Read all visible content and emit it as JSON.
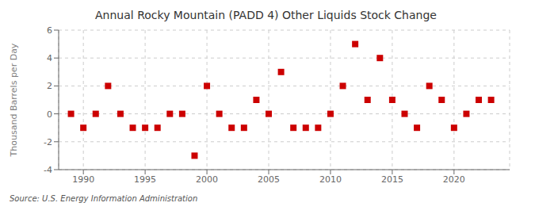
{
  "chart_data": {
    "type": "scatter",
    "title": "Annual Rocky Mountain (PADD 4) Other Liquids Stock Change",
    "ylabel": "Thousand Barrels per Day",
    "source": "Source: U.S. Energy Information Administration",
    "x": [
      1989,
      1990,
      1991,
      1992,
      1993,
      1994,
      1995,
      1996,
      1997,
      1998,
      1999,
      2000,
      2001,
      2002,
      2003,
      2004,
      2005,
      2006,
      2007,
      2008,
      2009,
      2010,
      2011,
      2012,
      2013,
      2014,
      2015,
      2016,
      2017,
      2018,
      2019,
      2020,
      2021,
      2022,
      2023
    ],
    "values": [
      0,
      -1,
      0,
      2,
      0,
      -1,
      -1,
      -1,
      0,
      0,
      -3,
      2,
      0,
      -1,
      -1,
      1,
      0,
      3,
      -1,
      -1,
      -1,
      0,
      2,
      5,
      1,
      4,
      1,
      0,
      -1,
      2,
      1,
      -1,
      0,
      1,
      1
    ],
    "color": "#cc0000",
    "marker": "square",
    "xlim": [
      1988.0,
      2024.5
    ],
    "xticks": [
      1990,
      1995,
      2000,
      2005,
      2010,
      2015,
      2020
    ],
    "ylim": [
      -4,
      6
    ],
    "yticks": [
      -4,
      -2,
      0,
      2,
      4,
      6
    ],
    "grid": true
  }
}
